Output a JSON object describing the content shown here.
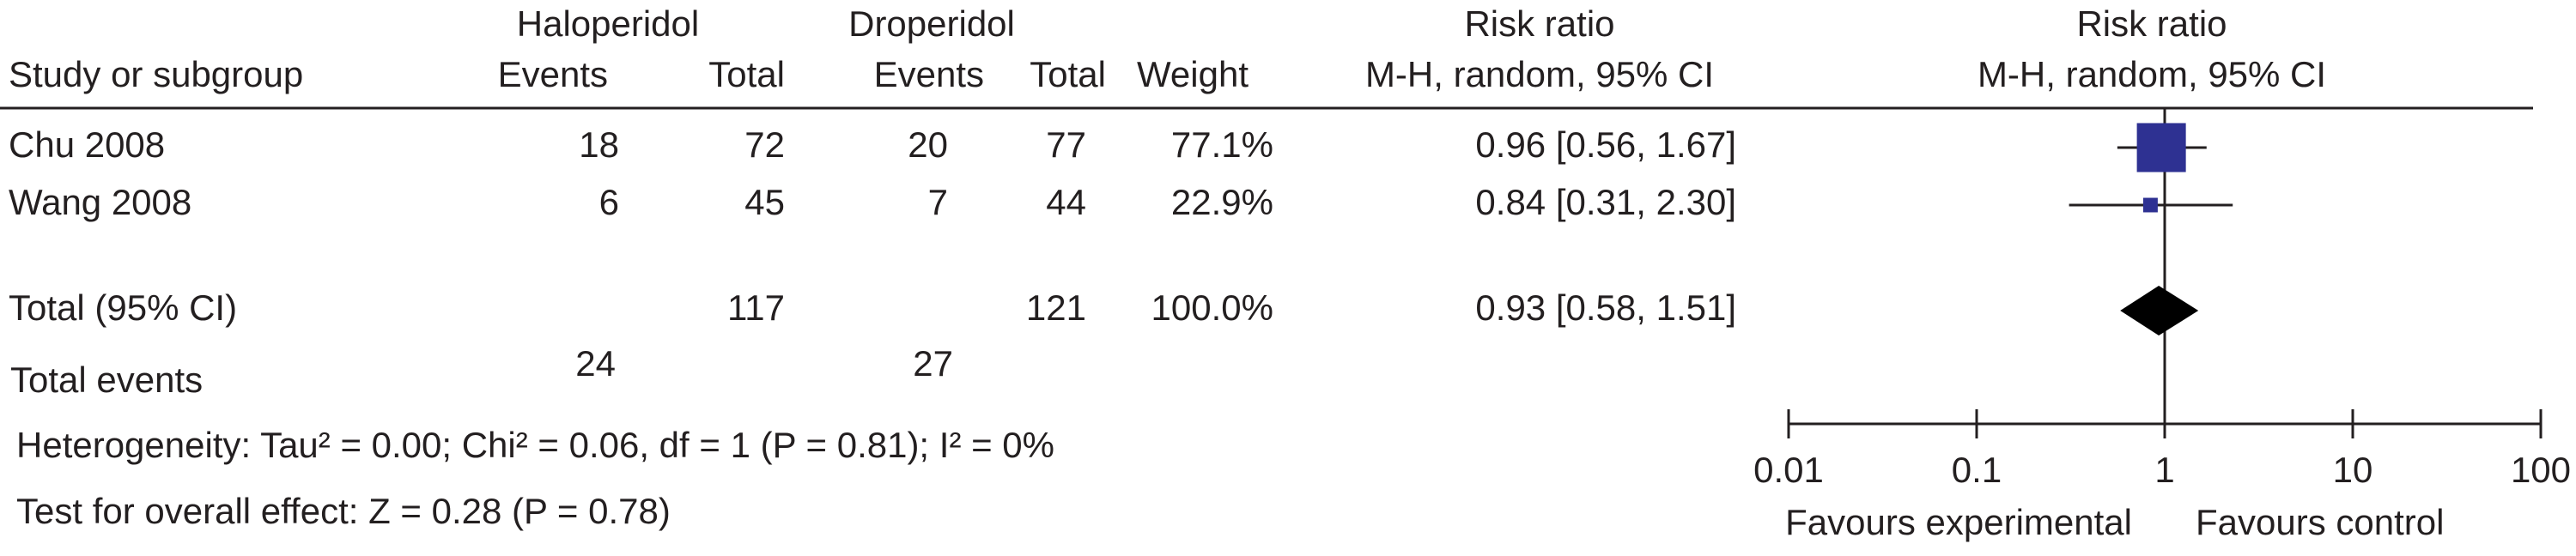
{
  "chart_data": {
    "type": "forest",
    "group_headers": [
      "Haloperidol",
      "Droperidol"
    ],
    "column_headers": [
      "Study or subgroup",
      "Events",
      "Total",
      "Events",
      "Total",
      "Weight"
    ],
    "ci_header": [
      "Risk ratio",
      "M-H, random, 95% CI"
    ],
    "plot_header": [
      "Risk ratio",
      "M-H, random, 95% CI"
    ],
    "studies": [
      {
        "name": "Chu 2008",
        "events_1": 18,
        "total_1": 72,
        "events_2": 20,
        "total_2": 77,
        "weight": 77.1,
        "weight_label": "77.1%",
        "rr": 0.96,
        "ci": [
          0.56,
          1.67
        ],
        "ci_label": "0.96 [0.56, 1.67]"
      },
      {
        "name": "Wang 2008",
        "events_1": 6,
        "total_1": 45,
        "events_2": 7,
        "total_2": 44,
        "weight": 22.9,
        "weight_label": "22.9%",
        "rr": 0.84,
        "ci": [
          0.31,
          2.3
        ],
        "ci_label": "0.84 [0.31, 2.30]"
      }
    ],
    "total": {
      "name": "Total (95% CI)",
      "total_1": 117,
      "total_2": 121,
      "weight": 100.0,
      "weight_label": "100.0%",
      "rr": 0.93,
      "ci": [
        0.58,
        1.51
      ],
      "ci_label": "0.93 [0.58, 1.51]"
    },
    "total_events": {
      "label": "Total events",
      "events_1": 24,
      "events_2": 27
    },
    "heterogeneity": "Heterogeneity: Tau² = 0.00; Chi² = 0.06, df = 1 (P = 0.81); I² = 0%",
    "overall_effect": "Test for overall effect: Z = 0.28 (P = 0.78)",
    "xscale": "log",
    "xlim": [
      0.01,
      100
    ],
    "xticks": [
      0.01,
      0.1,
      1,
      10,
      100
    ],
    "x_labels": [
      "Favours experimental",
      "Favours control"
    ],
    "study_color": "#2e3192",
    "total_color": "#000000"
  }
}
